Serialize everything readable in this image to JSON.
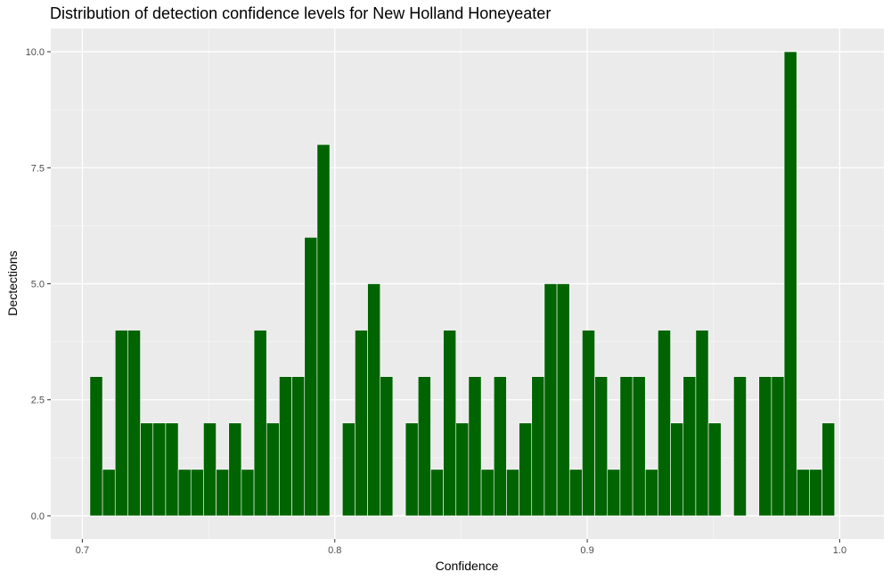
{
  "chart_data": {
    "type": "bar",
    "title": "Distribution of detection confidence levels for New Holland Honeyeater",
    "xlabel": "Confidence",
    "ylabel": "Dectections",
    "xlim": [
      0.6875,
      1.0175
    ],
    "ylim": [
      -0.5,
      10.5
    ],
    "x_ticks": [
      {
        "value": 0.7,
        "label": "0.7"
      },
      {
        "value": 0.8,
        "label": "0.8"
      },
      {
        "value": 0.9,
        "label": "0.9"
      },
      {
        "value": 1.0,
        "label": "1.0"
      }
    ],
    "y_ticks": [
      {
        "value": 0,
        "label": "0.0"
      },
      {
        "value": 2.5,
        "label": "2.5"
      },
      {
        "value": 5,
        "label": "5.0"
      },
      {
        "value": 7.5,
        "label": "7.5"
      },
      {
        "value": 10,
        "label": "10.0"
      }
    ],
    "bin_width": 0.005,
    "x": [
      0.7055,
      0.7105,
      0.7155,
      0.7205,
      0.7255,
      0.7305,
      0.7355,
      0.7405,
      0.7455,
      0.7505,
      0.7555,
      0.7605,
      0.7655,
      0.7705,
      0.7755,
      0.7805,
      0.7855,
      0.7905,
      0.7955,
      0.8005,
      0.8055,
      0.8105,
      0.8155,
      0.8205,
      0.8255,
      0.8305,
      0.8355,
      0.8405,
      0.8455,
      0.8505,
      0.8555,
      0.8605,
      0.8655,
      0.8705,
      0.8755,
      0.8805,
      0.8855,
      0.8905,
      0.8955,
      0.9005,
      0.9055,
      0.9105,
      0.9155,
      0.9205,
      0.9255,
      0.9305,
      0.9355,
      0.9405,
      0.9455,
      0.9505,
      0.9555,
      0.9605,
      0.9655,
      0.9705,
      0.9755,
      0.9805,
      0.9855,
      0.9905,
      0.9955
    ],
    "values": [
      3,
      1,
      4,
      4,
      2,
      2,
      2,
      1,
      1,
      2,
      1,
      2,
      1,
      4,
      2,
      3,
      3,
      6,
      8,
      0,
      2,
      4,
      5,
      3,
      0,
      2,
      3,
      1,
      4,
      2,
      3,
      1,
      3,
      1,
      2,
      3,
      5,
      5,
      1,
      4,
      3,
      1,
      3,
      3,
      1,
      4,
      2,
      3,
      4,
      2,
      0,
      3,
      0,
      3,
      3,
      10,
      1,
      1,
      2
    ],
    "grid": true,
    "legend": "none",
    "colors": {
      "bar_fill": "#006400",
      "bar_stroke": "#ffffff",
      "panel_background": "#ebebeb",
      "grid_major": "#ffffff",
      "grid_minor": "#f5f5f5",
      "tick_label": "#4d4d4d",
      "tick_mark": "#333333",
      "text": "#000000"
    }
  }
}
